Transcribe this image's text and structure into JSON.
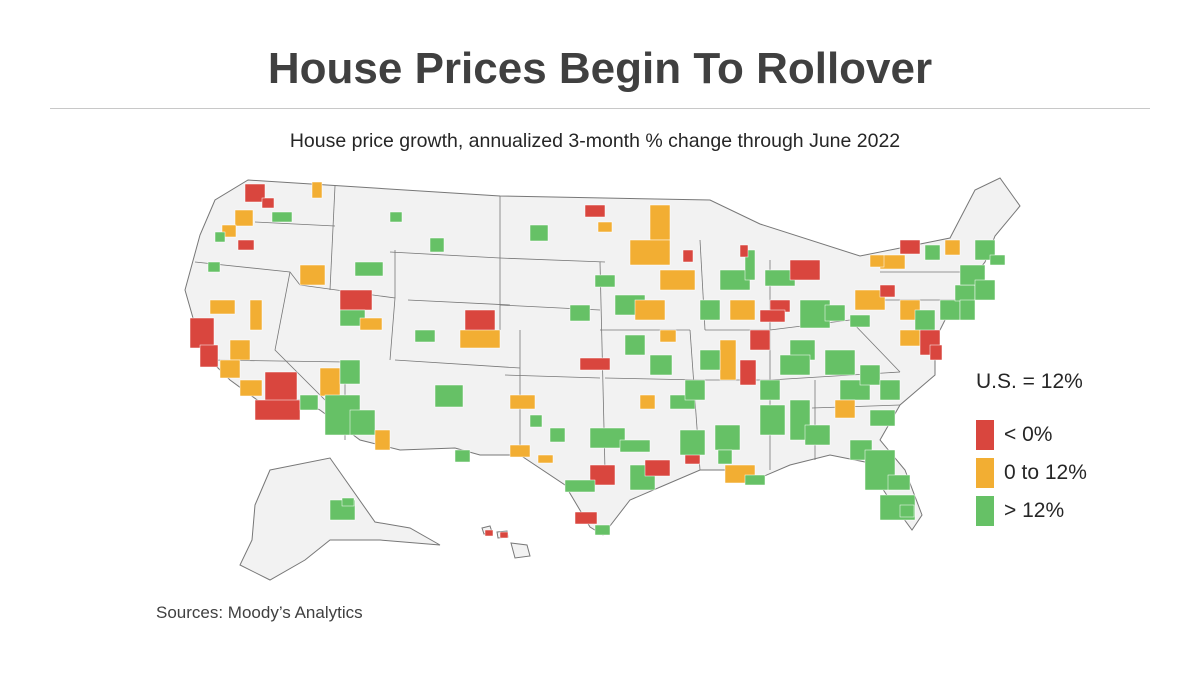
{
  "title": "House Prices Begin To Rollover",
  "subtitle": "House price growth, annualized 3-month % change through June 2022",
  "source": "Sources: Moody’s Analytics",
  "map": {
    "region": "United States (metro areas)",
    "base_fill": "#f2f2f2",
    "border_color": "#777777"
  },
  "legend": {
    "heading": "U.S. = 12%",
    "items": [
      {
        "label": "< 0%",
        "color": "#d9463e"
      },
      {
        "label": "0 to 12%",
        "color": "#f2ae33"
      },
      {
        "label": "> 12%",
        "color": "#66c166"
      }
    ]
  }
}
